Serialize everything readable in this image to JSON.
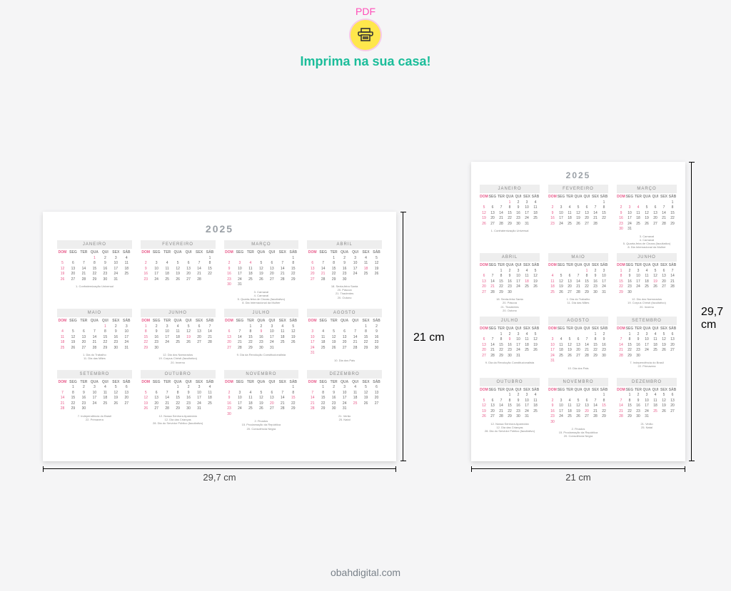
{
  "header": {
    "pdf_label": "PDF",
    "print_text": "Imprima na sua casa!",
    "icon_bg": "#ffe74c",
    "icon_ring": "#ff4db8"
  },
  "footer_brand": "obahdigital.com",
  "colors": {
    "page_bg": "#ffffff",
    "canvas_bg": "#f5f5f6",
    "year_color": "#9aa0a6",
    "month_header_bg": "#eeeeee",
    "text_muted": "#888888",
    "sunday_color": "#e85a8a",
    "day_color": "#666666",
    "print_text_color": "#1bbd9a",
    "pdf_label_color": "#ff4db8"
  },
  "year": "2025",
  "dow": [
    "DOM",
    "SEG",
    "TER",
    "QUA",
    "QUI",
    "SEX",
    "SÁB"
  ],
  "dimensions": {
    "landscape": {
      "w": "29,7 cm",
      "h": "21 cm"
    },
    "portrait": {
      "w": "21 cm",
      "h": "29,7 cm"
    }
  },
  "months": [
    {
      "name": "JANEIRO",
      "start": 3,
      "days": 31,
      "holidays": [
        1
      ],
      "notes": [
        "1. Confraternização Universal"
      ]
    },
    {
      "name": "FEVEREIRO",
      "start": 6,
      "days": 28,
      "holidays": [],
      "notes": []
    },
    {
      "name": "MARÇO",
      "start": 6,
      "days": 31,
      "holidays": [
        3,
        4
      ],
      "notes": [
        "3. Carnaval",
        "4. Carnaval",
        "5. Quarta-feira de Cinzas (facultativo)",
        "8. Dia Internacional da Mulher"
      ]
    },
    {
      "name": "ABRIL",
      "start": 2,
      "days": 30,
      "holidays": [
        18,
        21
      ],
      "notes": [
        "18. Sexta-feira Santa",
        "20. Páscoa",
        "21. Tiradentes",
        "20. Outono"
      ]
    },
    {
      "name": "MAIO",
      "start": 4,
      "days": 31,
      "holidays": [
        1
      ],
      "notes": [
        "1. Dia do Trabalho",
        "11. Dia das Mães"
      ]
    },
    {
      "name": "JUNHO",
      "start": 0,
      "days": 30,
      "holidays": [
        19
      ],
      "notes": [
        "12. Dia dos Namorados",
        "19. Corpus Christi (facultativo)",
        "20. Inverno"
      ]
    },
    {
      "name": "JULHO",
      "start": 2,
      "days": 31,
      "holidays": [
        9
      ],
      "notes": [
        "9. Dia da Revolução Constitucionalista"
      ]
    },
    {
      "name": "AGOSTO",
      "start": 5,
      "days": 31,
      "holidays": [],
      "notes": [
        "10. Dia dos Pais"
      ]
    },
    {
      "name": "SETEMBRO",
      "start": 1,
      "days": 30,
      "holidays": [
        7
      ],
      "notes": [
        "7. Independência do Brasil",
        "22. Primavera"
      ]
    },
    {
      "name": "OUTUBRO",
      "start": 3,
      "days": 31,
      "holidays": [
        12
      ],
      "notes": [
        "12. Nossa Senhora Aparecida",
        "12. Dia das Crianças",
        "28. Dia do Servidor Público (facultativo)"
      ]
    },
    {
      "name": "NOVEMBRO",
      "start": 6,
      "days": 30,
      "holidays": [
        2,
        15,
        20
      ],
      "notes": [
        "2. Finados",
        "15. Proclamação da República",
        "20. Consciência Negra"
      ]
    },
    {
      "name": "DEZEMBRO",
      "start": 1,
      "days": 31,
      "holidays": [
        25
      ],
      "notes": [
        "21. Verão",
        "25. Natal"
      ]
    }
  ]
}
